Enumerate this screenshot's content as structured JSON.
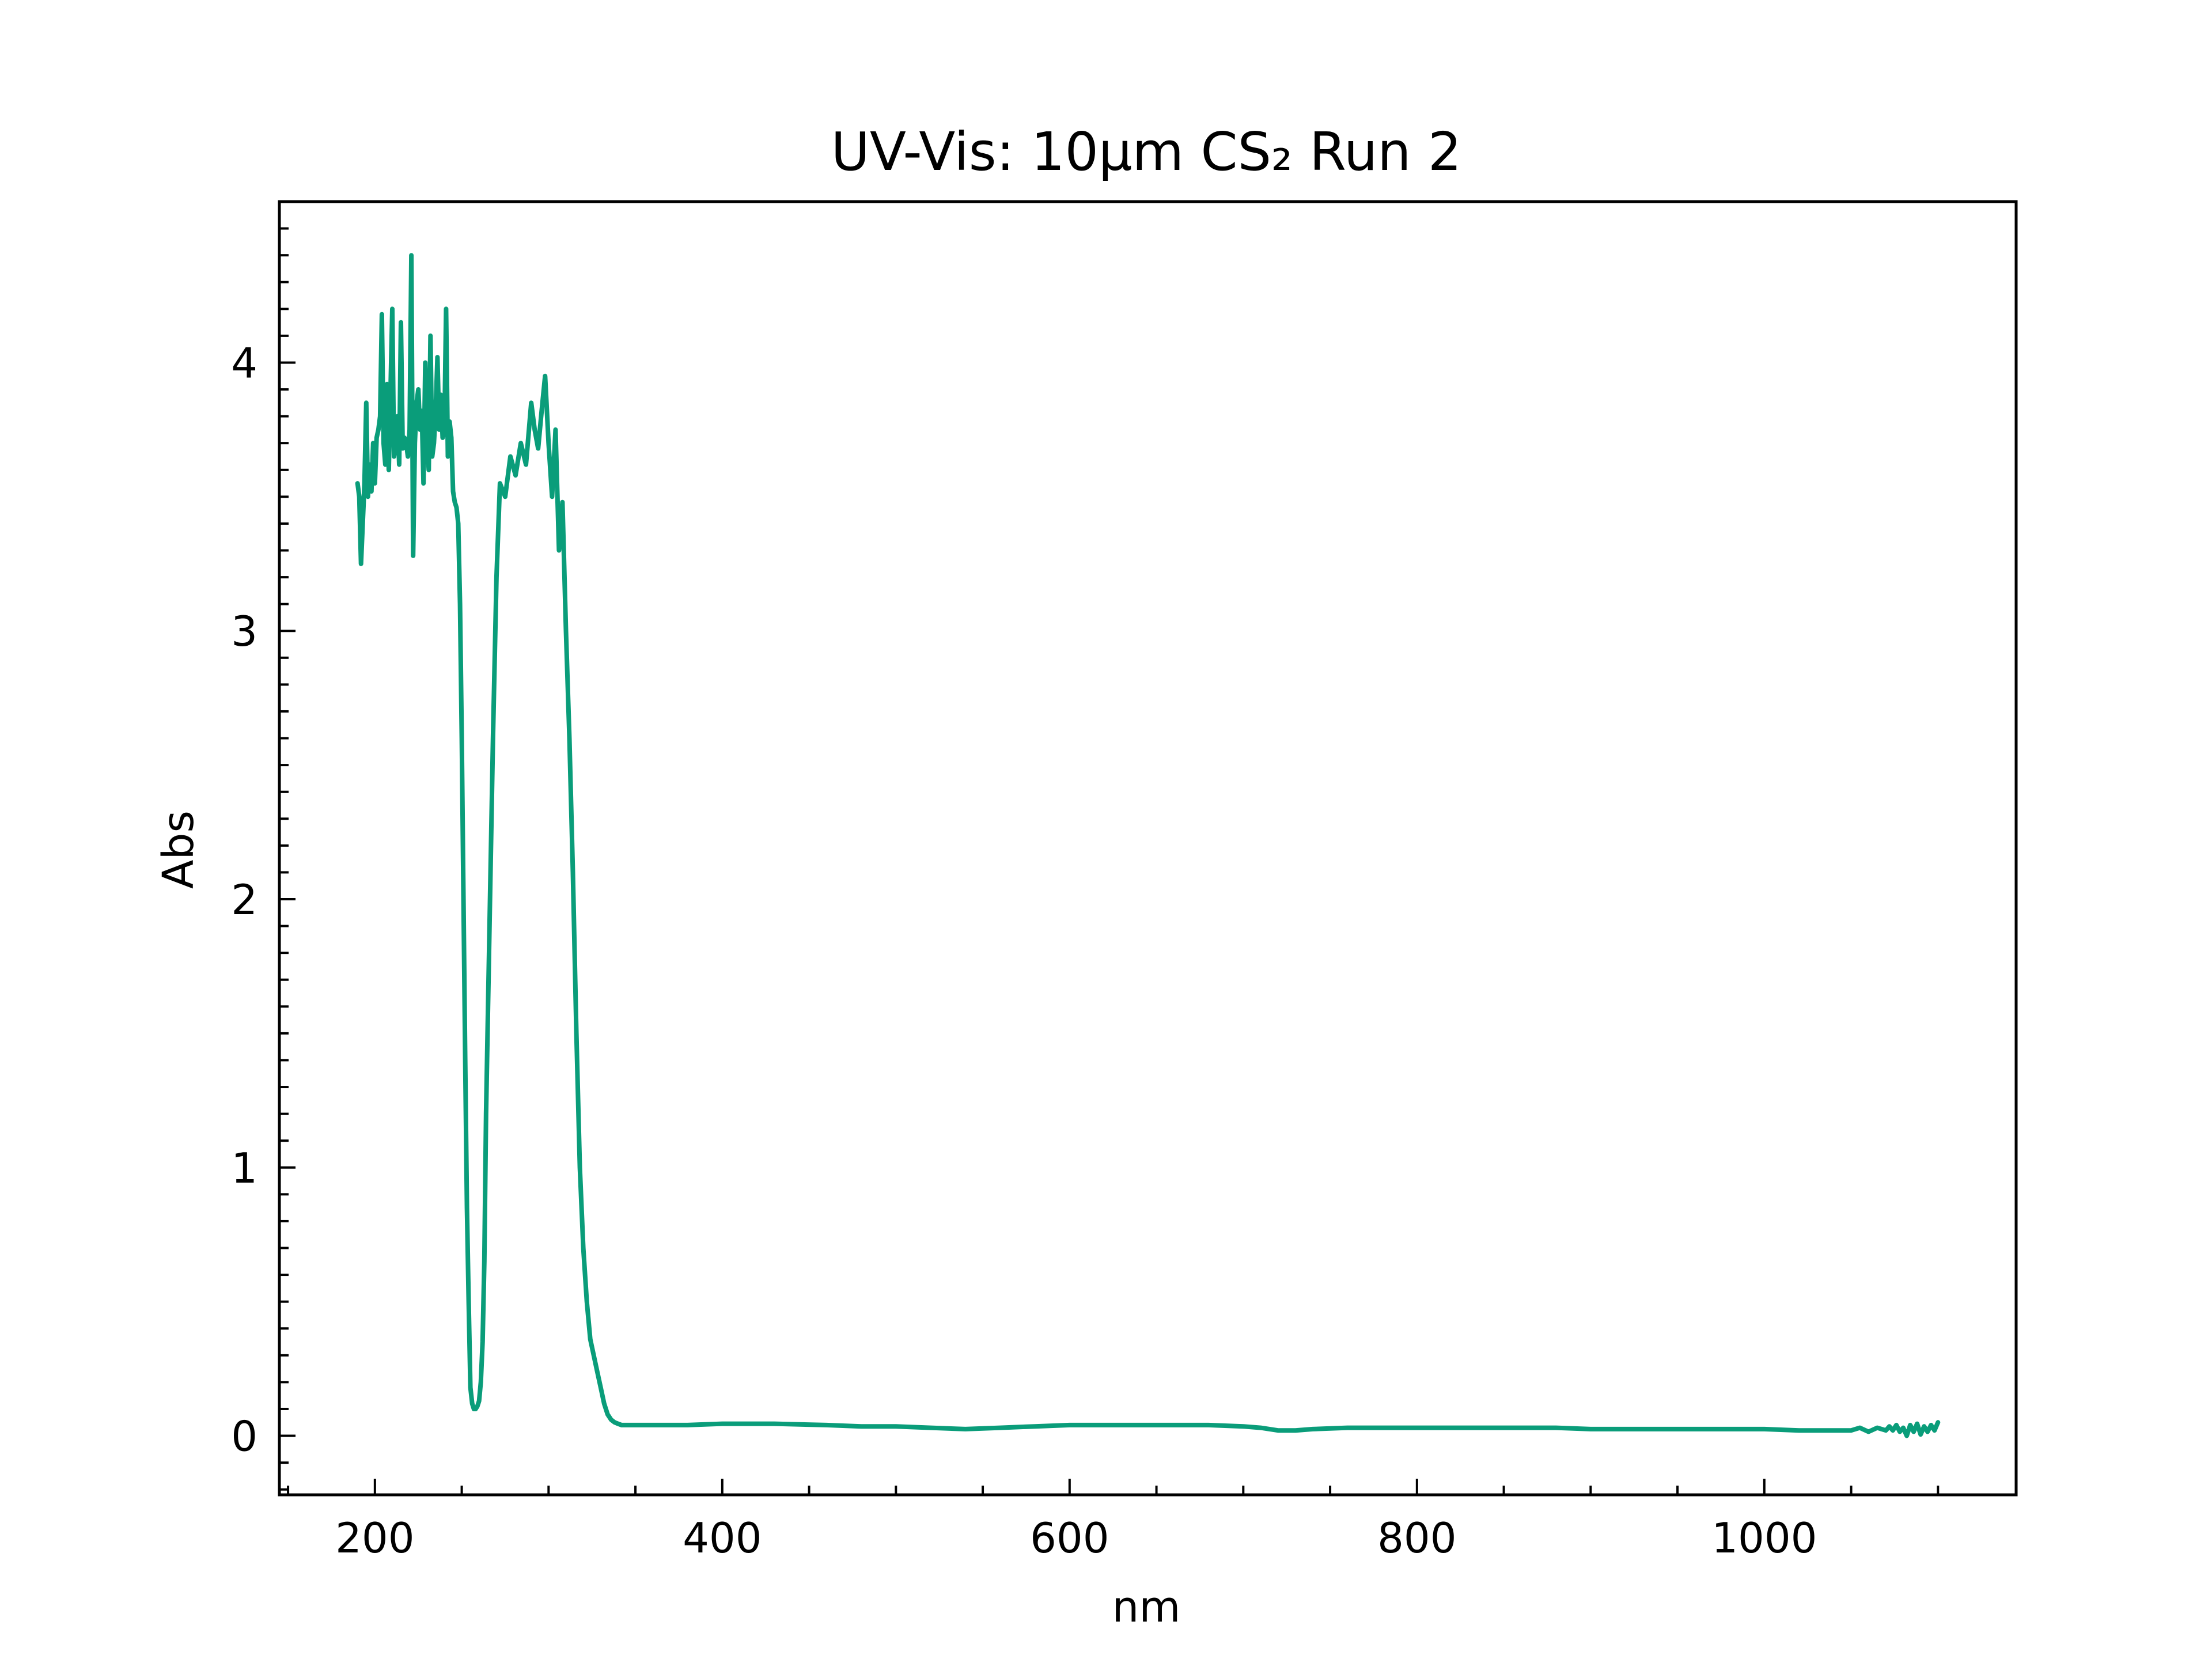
{
  "chart_data": {
    "type": "line",
    "title": "UV-Vis: 10µm CS₂ Run 2",
    "xlabel": "nm",
    "ylabel": "Abs",
    "xlim": [
      145,
      1145
    ],
    "ylim": [
      -0.22,
      4.6
    ],
    "x_ticks": [
      200,
      400,
      600,
      800,
      1000
    ],
    "y_ticks": [
      0,
      1,
      2,
      3,
      4
    ],
    "grid": false,
    "legend": "none",
    "colors": {
      "series": "#0a9d7a",
      "axes": "#000000",
      "background": "#ffffff"
    },
    "series": [
      {
        "x": [
          190,
          191,
          192,
          193,
          194,
          195,
          196,
          197,
          198,
          199,
          200,
          201,
          202,
          203,
          204,
          205,
          206,
          207,
          208,
          209,
          210,
          211,
          212,
          213,
          214,
          215,
          216,
          217,
          218,
          219,
          220,
          221,
          222,
          223,
          224,
          225,
          226,
          227,
          228,
          229,
          230,
          231,
          232,
          233,
          234,
          235,
          236,
          237,
          238,
          239,
          240,
          241,
          242,
          243,
          244,
          245,
          246,
          247,
          248,
          249,
          250,
          251,
          252,
          253,
          254,
          255,
          256,
          257,
          258,
          259,
          260,
          261,
          262,
          263,
          264,
          266,
          268,
          270,
          272,
          275,
          278,
          281,
          284,
          287,
          290,
          292,
          294,
          296,
          298,
          300,
          302,
          304,
          306,
          308,
          310,
          312,
          314,
          316,
          318,
          320,
          322,
          324,
          326,
          328,
          330,
          332,
          334,
          336,
          338,
          340,
          342,
          344,
          346,
          348,
          350,
          352,
          354,
          356,
          358,
          360,
          365,
          370,
          380,
          400,
          430,
          460,
          480,
          500,
          520,
          540,
          560,
          580,
          600,
          620,
          640,
          660,
          680,
          700,
          710,
          720,
          730,
          740,
          760,
          780,
          800,
          820,
          840,
          860,
          880,
          900,
          920,
          940,
          960,
          980,
          1000,
          1020,
          1040,
          1050,
          1055,
          1060,
          1065,
          1070,
          1072,
          1074,
          1076,
          1078,
          1080,
          1082,
          1084,
          1086,
          1088,
          1090,
          1092,
          1094,
          1096,
          1098,
          1100
        ],
        "y": [
          3.55,
          3.5,
          3.25,
          3.4,
          3.55,
          3.85,
          3.5,
          3.62,
          3.52,
          3.7,
          3.55,
          3.72,
          3.75,
          3.8,
          4.18,
          3.7,
          3.62,
          3.92,
          3.6,
          3.9,
          4.2,
          3.65,
          3.7,
          3.8,
          3.62,
          4.15,
          3.68,
          3.72,
          3.7,
          3.65,
          3.75,
          4.4,
          3.28,
          3.7,
          3.85,
          3.9,
          3.75,
          3.82,
          3.55,
          4.0,
          3.72,
          3.6,
          4.1,
          3.65,
          3.7,
          3.82,
          4.02,
          3.75,
          3.88,
          3.72,
          3.74,
          4.2,
          3.65,
          3.78,
          3.72,
          3.52,
          3.48,
          3.46,
          3.4,
          3.1,
          2.6,
          2.0,
          1.4,
          0.85,
          0.5,
          0.18,
          0.12,
          0.1,
          0.1,
          0.11,
          0.13,
          0.2,
          0.35,
          0.65,
          1.2,
          1.9,
          2.6,
          3.2,
          3.55,
          3.5,
          3.65,
          3.58,
          3.7,
          3.62,
          3.85,
          3.75,
          3.68,
          3.82,
          3.95,
          3.7,
          3.5,
          3.75,
          3.3,
          3.48,
          3.0,
          2.6,
          2.1,
          1.5,
          1.0,
          0.7,
          0.5,
          0.36,
          0.3,
          0.24,
          0.18,
          0.12,
          0.08,
          0.06,
          0.05,
          0.045,
          0.04,
          0.04,
          0.04,
          0.04,
          0.04,
          0.04,
          0.04,
          0.04,
          0.04,
          0.04,
          0.04,
          0.04,
          0.04,
          0.045,
          0.045,
          0.04,
          0.035,
          0.035,
          0.03,
          0.025,
          0.03,
          0.035,
          0.04,
          0.04,
          0.04,
          0.04,
          0.04,
          0.035,
          0.03,
          0.02,
          0.02,
          0.025,
          0.03,
          0.03,
          0.03,
          0.03,
          0.03,
          0.03,
          0.03,
          0.025,
          0.025,
          0.025,
          0.025,
          0.025,
          0.025,
          0.02,
          0.02,
          0.02,
          0.03,
          0.015,
          0.03,
          0.02,
          0.035,
          0.02,
          0.04,
          0.015,
          0.03,
          0.0,
          0.04,
          0.015,
          0.045,
          0.005,
          0.035,
          0.015,
          0.04,
          0.02,
          0.05
        ]
      }
    ]
  }
}
